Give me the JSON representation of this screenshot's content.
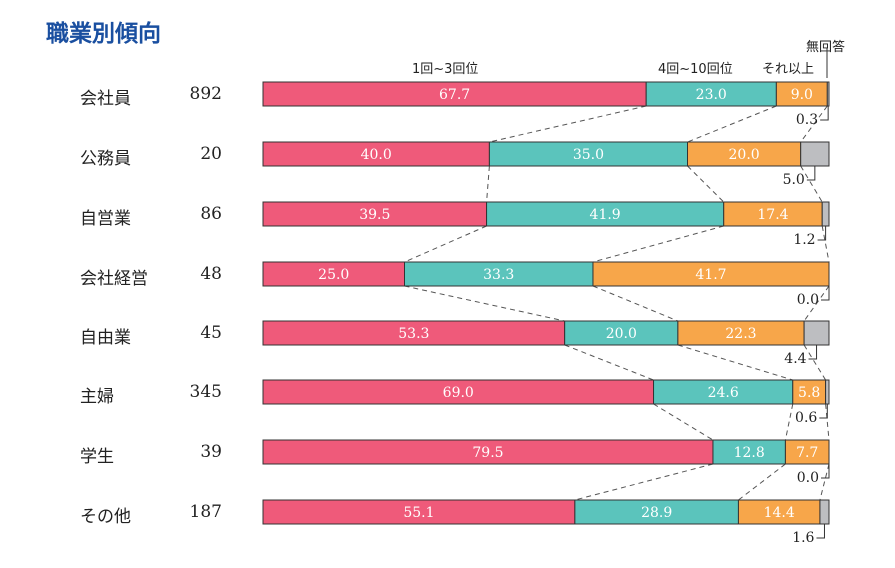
{
  "title": "職業別傾向",
  "chart_data": {
    "type": "bar",
    "orientation": "horizontal",
    "stacked": true,
    "percent": true,
    "title": "職業別傾向",
    "series_names": [
      "1回~3回位",
      "4回~10回位",
      "それ以上",
      "無回答"
    ],
    "colors": [
      "#ef5a7a",
      "#5bc4bc",
      "#f7a64a",
      "#bdbec1"
    ],
    "categories": [
      "会社員",
      "公務員",
      "自営業",
      "会社経営",
      "自由業",
      "主婦",
      "学生",
      "その他"
    ],
    "n": [
      "892",
      "20",
      "86",
      "48",
      "45",
      "345",
      "39",
      "187"
    ],
    "series": [
      {
        "name": "1回~3回位",
        "values": [
          67.7,
          40.0,
          39.5,
          25.0,
          53.3,
          69.0,
          79.5,
          55.1
        ],
        "labels": [
          "67.7",
          "40.0",
          "39.5",
          "25.0",
          "53.3",
          "69.0",
          "79.5",
          "55.1"
        ]
      },
      {
        "name": "4回~10回位",
        "values": [
          23.0,
          35.0,
          41.9,
          33.3,
          20.0,
          24.6,
          12.8,
          28.9
        ],
        "labels": [
          "23.0",
          "35.0",
          "41.9",
          "33.3",
          "20.0",
          "24.6",
          "12.8",
          "28.9"
        ]
      },
      {
        "name": "それ以上",
        "values": [
          9.0,
          20.0,
          17.4,
          41.7,
          22.3,
          5.8,
          7.7,
          14.4
        ],
        "labels": [
          "9.0",
          "20.0",
          "17.4",
          "41.7",
          "22.3",
          "5.8",
          "7.7",
          "14.4"
        ]
      },
      {
        "name": "無回答",
        "values": [
          0.3,
          5.0,
          1.2,
          0.0,
          4.4,
          0.6,
          0.0,
          1.6
        ],
        "labels": [
          "0.3",
          "5.0",
          "1.2",
          "0.0",
          "4.4",
          "0.6",
          "0.0",
          "1.6"
        ]
      }
    ],
    "xlim": [
      0,
      100
    ]
  }
}
